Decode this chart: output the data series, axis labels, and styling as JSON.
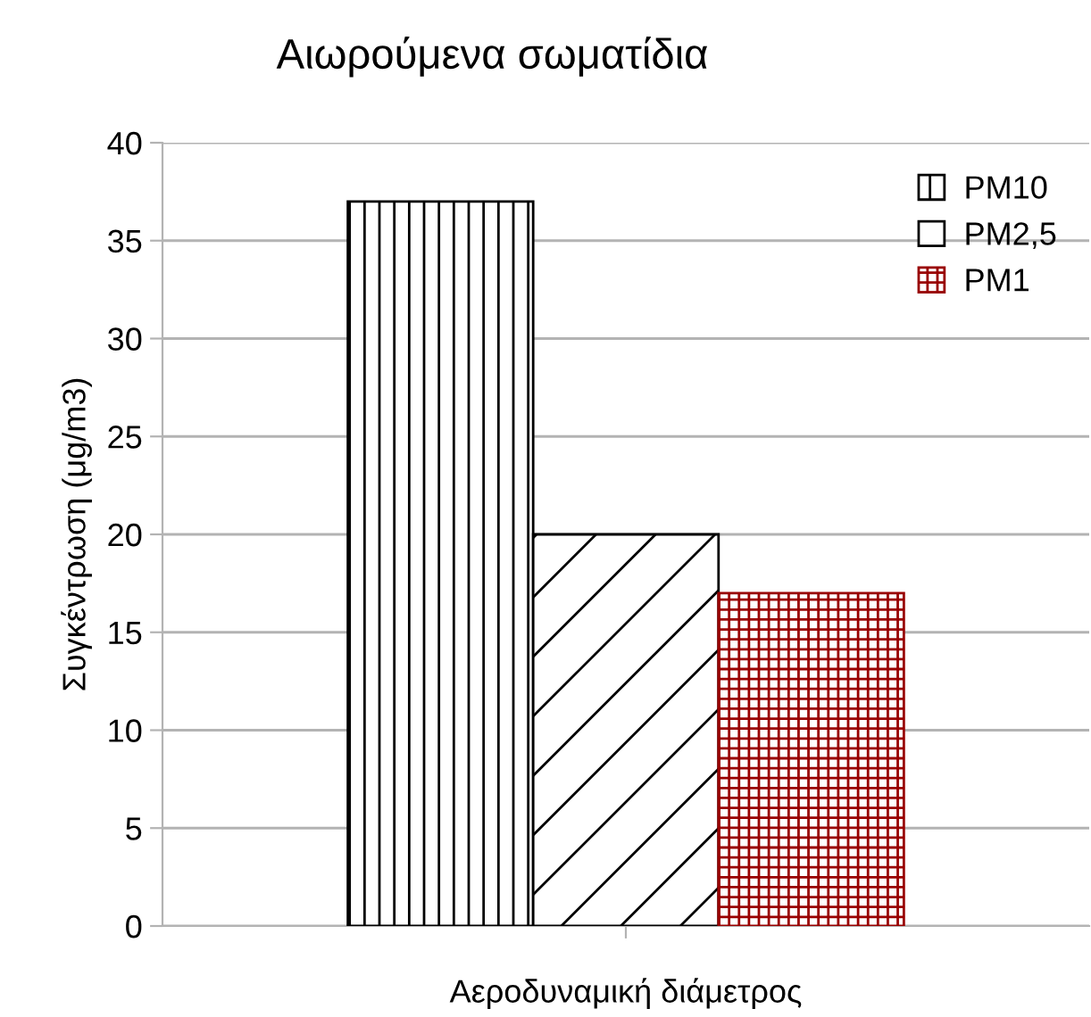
{
  "chart_data": {
    "type": "bar",
    "title": "Αιωρούμενα σωματίδια",
    "ylabel": "Συγκέντρωση (μg/m3)",
    "categories": [
      "Αεροδυναμική διάμετρος"
    ],
    "series": [
      {
        "name": "PM10",
        "color": "#000000",
        "values": [
          37
        ]
      },
      {
        "name": "PM2,5",
        "color": "#000000",
        "values": [
          20
        ]
      },
      {
        "name": "PM1",
        "color": "#990000",
        "values": [
          17
        ]
      }
    ],
    "ylim": [
      0,
      40
    ],
    "yticks": [
      0,
      5,
      10,
      15,
      20,
      25,
      30,
      35,
      40
    ],
    "grid": "y",
    "legend": "top right"
  }
}
